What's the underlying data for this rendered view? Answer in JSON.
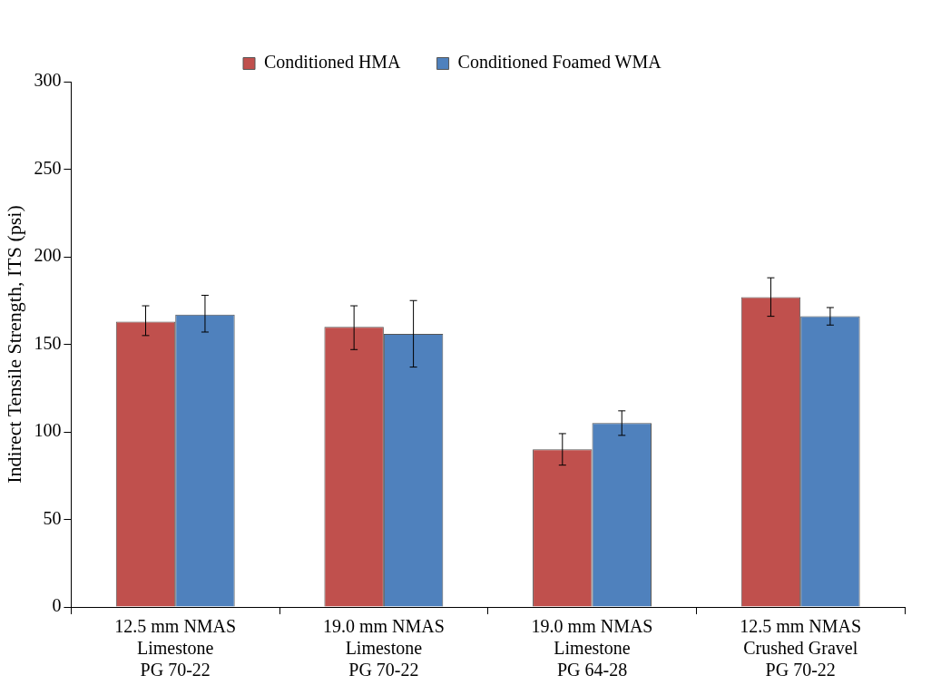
{
  "chart_data": {
    "type": "bar",
    "ylabel": "Indirect Tensile Strength, ITS (psi)",
    "categories": [
      "12.5 mm NMAS\nLimestone\nPG 70-22",
      "19.0 mm NMAS\nLimestone\nPG 70-22",
      "19.0 mm NMAS\nLimestone\nPG 64-28",
      "12.5 mm NMAS\nCrushed Gravel\nPG 70-22"
    ],
    "series": [
      {
        "name": "Conditioned HMA",
        "color": "#c0504d",
        "values": [
          163,
          160,
          90,
          177
        ],
        "errors": [
          [
            155,
            172
          ],
          [
            147,
            172
          ],
          [
            81,
            99
          ],
          [
            166,
            188
          ]
        ]
      },
      {
        "name": "Conditioned Foamed WMA",
        "color": "#4f81bd",
        "values": [
          167,
          156,
          105,
          166
        ],
        "errors": [
          [
            157,
            178
          ],
          [
            137,
            175
          ],
          [
            98,
            112
          ],
          [
            161,
            171
          ]
        ]
      }
    ],
    "ylim": [
      0,
      300
    ],
    "yticks": [
      0,
      50,
      100,
      150,
      200,
      250,
      300
    ],
    "grid": false,
    "legend": "top"
  }
}
